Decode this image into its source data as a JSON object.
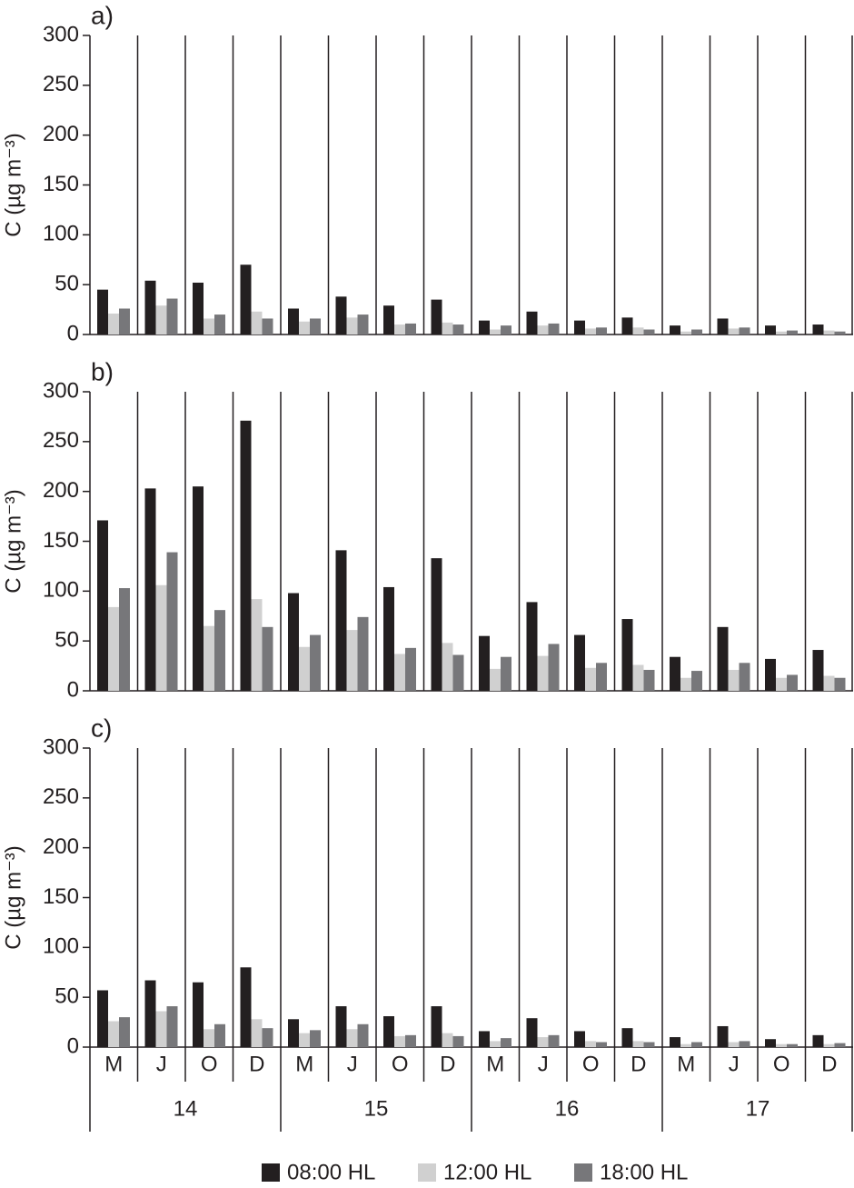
{
  "chart_data": [
    {
      "type": "bar",
      "panel_label": "a)",
      "y_label": "C (µg m⁻³)",
      "ylim": [
        0,
        300
      ],
      "yticks": [
        0,
        50,
        100,
        150,
        200,
        250,
        300
      ],
      "series": [
        {
          "color": "#231f20",
          "values": [
            45,
            54,
            52,
            70,
            26,
            38,
            29,
            35,
            14,
            23,
            14,
            17,
            9,
            16,
            9,
            10
          ]
        },
        {
          "color": "#d0d0d0",
          "values": [
            21,
            29,
            16,
            23,
            13,
            17,
            10,
            12,
            5,
            9,
            6,
            7,
            3,
            6,
            3,
            4
          ]
        },
        {
          "color": "#77777a",
          "values": [
            26,
            36,
            20,
            16,
            16,
            20,
            11,
            10,
            9,
            11,
            7,
            5,
            5,
            7,
            4,
            3
          ]
        }
      ]
    },
    {
      "type": "bar",
      "panel_label": "b)",
      "y_label": "C (µg m⁻³)",
      "ylim": [
        0,
        300
      ],
      "yticks": [
        0,
        50,
        100,
        150,
        200,
        250,
        300
      ],
      "series": [
        {
          "color": "#231f20",
          "values": [
            171,
            203,
            205,
            271,
            98,
            141,
            104,
            133,
            55,
            89,
            56,
            72,
            34,
            64,
            32,
            41
          ]
        },
        {
          "color": "#d0d0d0",
          "values": [
            84,
            106,
            65,
            92,
            44,
            61,
            37,
            48,
            22,
            35,
            23,
            26,
            13,
            21,
            13,
            15
          ]
        },
        {
          "color": "#77777a",
          "values": [
            103,
            139,
            81,
            64,
            56,
            74,
            43,
            36,
            34,
            47,
            28,
            21,
            20,
            28,
            16,
            13
          ]
        }
      ]
    },
    {
      "type": "bar",
      "panel_label": "c)",
      "y_label": "C (µg m⁻³)",
      "ylim": [
        0,
        300
      ],
      "yticks": [
        0,
        50,
        100,
        150,
        200,
        250,
        300
      ],
      "categories": [
        "M",
        "J",
        "O",
        "D",
        "M",
        "J",
        "O",
        "D",
        "M",
        "J",
        "O",
        "D",
        "M",
        "J",
        "O",
        "D"
      ],
      "groups": [
        "14",
        "15",
        "16",
        "17"
      ],
      "series": [
        {
          "name": "08:00 HL",
          "color": "#231f20",
          "values": [
            57,
            67,
            65,
            80,
            28,
            41,
            31,
            41,
            16,
            29,
            16,
            19,
            10,
            21,
            8,
            12
          ]
        },
        {
          "name": "12:00 HL",
          "color": "#d0d0d0",
          "values": [
            26,
            36,
            18,
            28,
            14,
            18,
            11,
            14,
            6,
            10,
            6,
            6,
            3,
            5,
            3,
            3
          ]
        },
        {
          "name": "18:00 HL",
          "color": "#77777a",
          "values": [
            30,
            41,
            23,
            19,
            17,
            23,
            12,
            11,
            9,
            12,
            5,
            5,
            5,
            6,
            3,
            4
          ]
        }
      ]
    }
  ]
}
